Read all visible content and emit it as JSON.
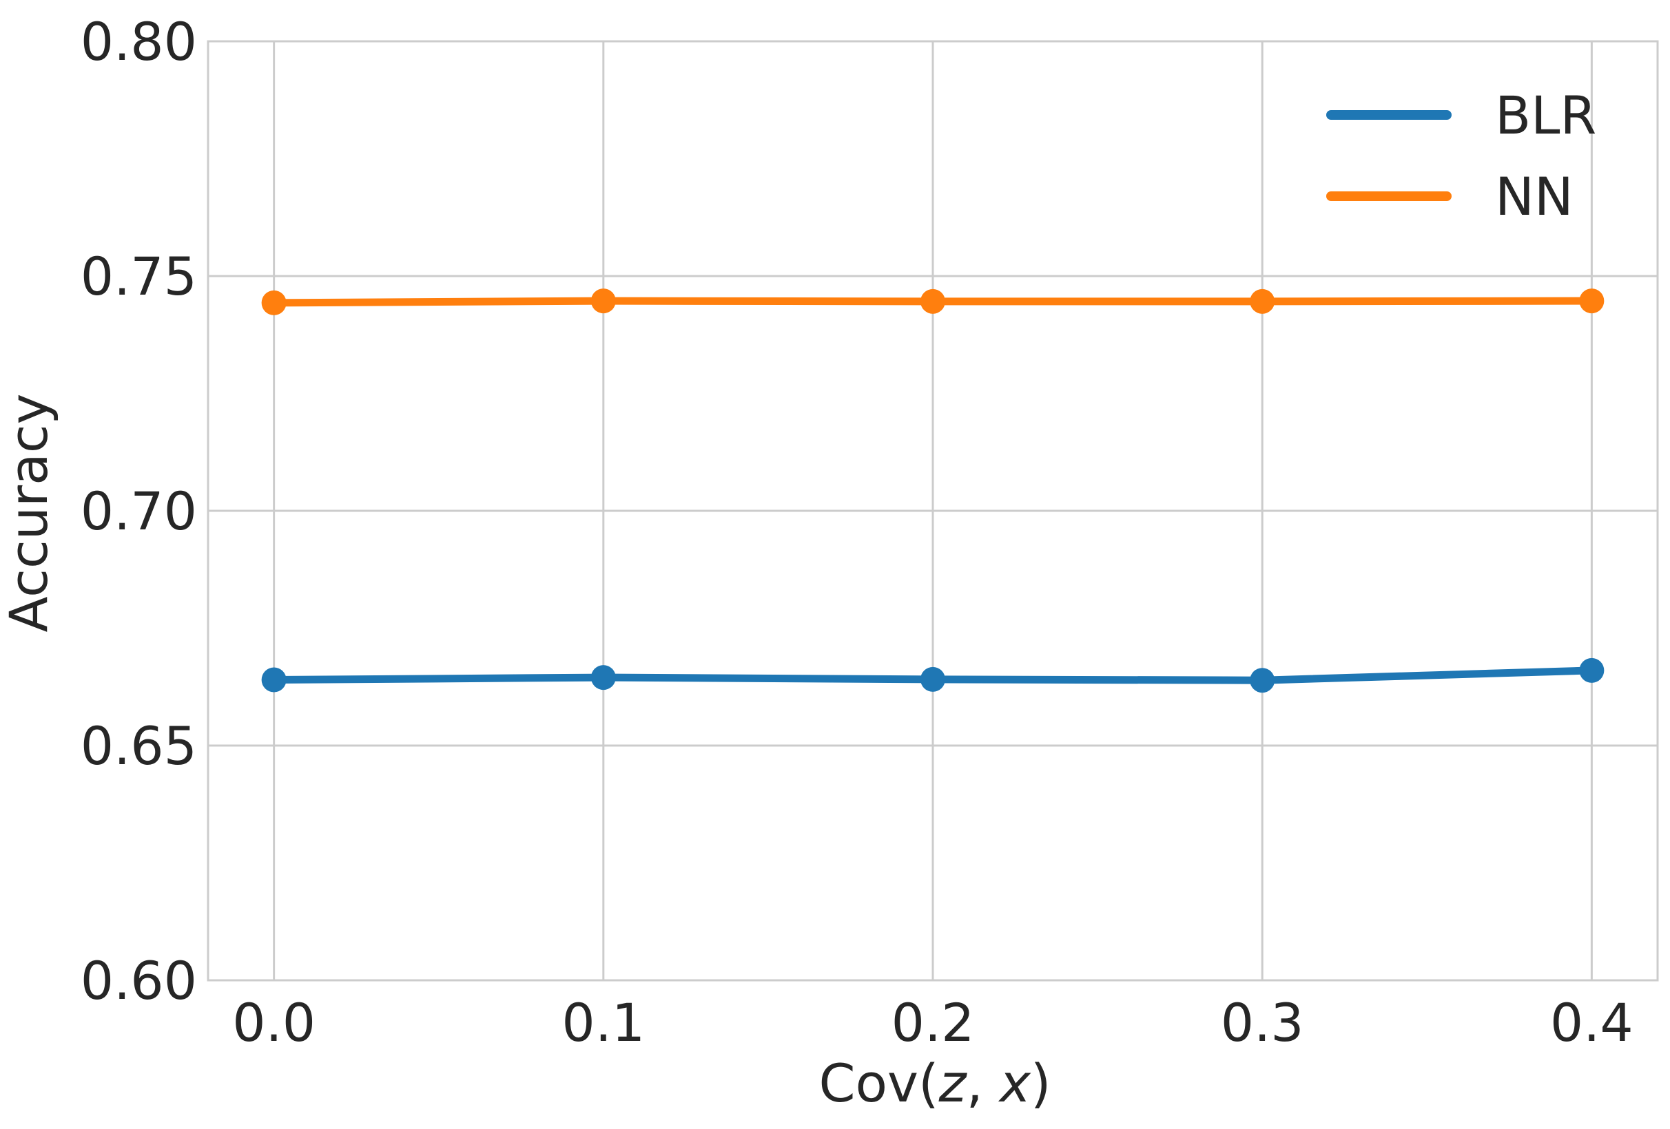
{
  "chart_data": {
    "type": "line",
    "title": "",
    "xlabel": "Cov(z, x)",
    "xlabel_parts": {
      "prefix": "Cov(",
      "var1": "z",
      "sep": ", ",
      "var2": "x",
      "suffix": ")"
    },
    "ylabel": "Accuracy",
    "x": [
      0.0,
      0.1,
      0.2,
      0.3,
      0.4
    ],
    "xtick_labels": [
      "0.0",
      "0.1",
      "0.2",
      "0.3",
      "0.4"
    ],
    "ytick_labels": [
      "0.60",
      "0.65",
      "0.70",
      "0.75",
      "0.80"
    ],
    "yticks": [
      0.6,
      0.65,
      0.7,
      0.75,
      0.8
    ],
    "xlim": [
      -0.02,
      0.42
    ],
    "ylim": [
      0.6,
      0.8
    ],
    "grid": true,
    "legend": "top-right",
    "series": [
      {
        "name": "BLR",
        "color": "#1f77b4",
        "values": [
          0.664,
          0.6645,
          0.6641,
          0.6639,
          0.666
        ]
      },
      {
        "name": "NN",
        "color": "#ff7f0e",
        "values": [
          0.7443,
          0.7447,
          0.7446,
          0.7446,
          0.7447
        ]
      }
    ]
  }
}
